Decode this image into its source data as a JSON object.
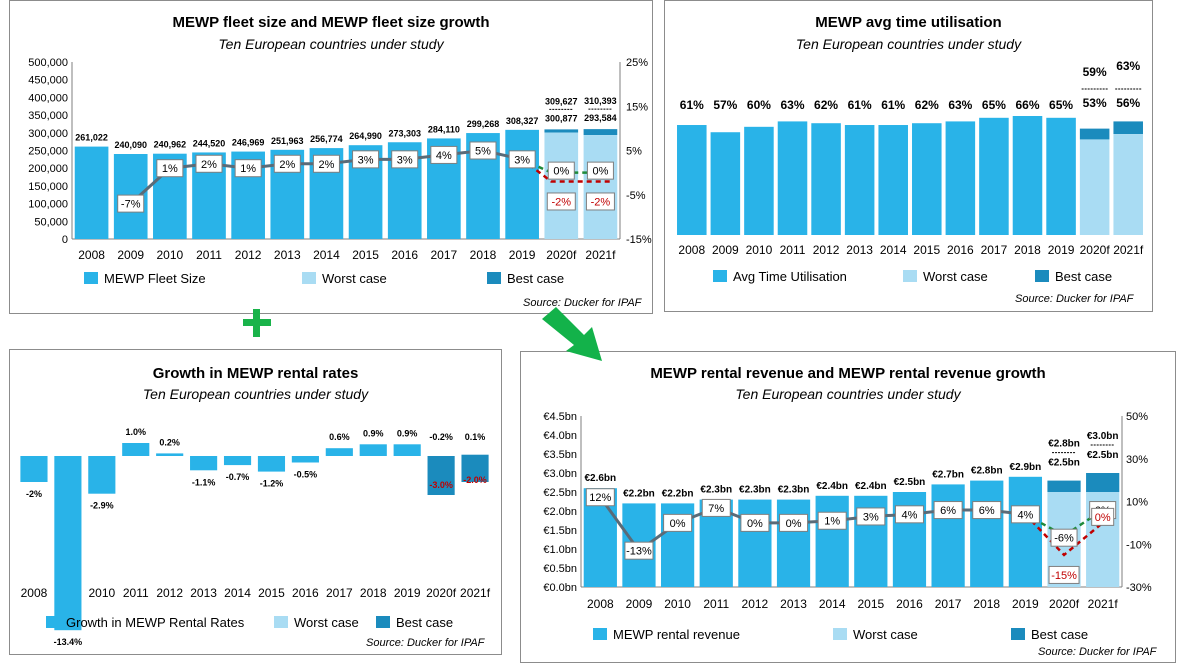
{
  "colors": {
    "main": "#29b3e8",
    "worst": "#a9dcf3",
    "best": "#1b8bbd",
    "line": "#5a6b78",
    "green": "#1f8a3a",
    "red": "#c00000"
  },
  "panels": {
    "fleet": {
      "title": "MEWP fleet size and MEWP fleet size growth",
      "subtitle": "Ten European countries under study",
      "source": "Source: Ducker for IPAF"
    },
    "util": {
      "title": "MEWP avg time utilisation",
      "subtitle": "Ten European countries under study",
      "source": "Source: Ducker for IPAF"
    },
    "rates": {
      "title": "Growth in MEWP rental rates",
      "subtitle": "Ten European countries under study",
      "source": "Source: Ducker for IPAF"
    },
    "revenue": {
      "title": "MEWP rental revenue and MEWP rental revenue growth",
      "subtitle": "Ten European countries under study",
      "source": "Source: Ducker for IPAF"
    }
  },
  "chart_data": [
    {
      "id": "fleet",
      "type": "bar",
      "categories": [
        "2008",
        "2009",
        "2010",
        "2011",
        "2012",
        "2013",
        "2014",
        "2015",
        "2016",
        "2017",
        "2018",
        "2019",
        "2020f",
        "2021f"
      ],
      "series": [
        {
          "name": "MEWP Fleet Size",
          "values": [
            261022,
            240090,
            240962,
            244520,
            246969,
            251963,
            256774,
            264990,
            273303,
            284110,
            299268,
            308327,
            null,
            null
          ]
        },
        {
          "name": "Worst case",
          "values": [
            null,
            null,
            null,
            null,
            null,
            null,
            null,
            null,
            null,
            null,
            null,
            null,
            300877,
            293584
          ]
        },
        {
          "name": "Best case",
          "values": [
            null,
            null,
            null,
            null,
            null,
            null,
            null,
            null,
            null,
            null,
            null,
            null,
            309627,
            310393
          ]
        }
      ],
      "bar_labels": [
        "261,022",
        "240,090",
        "240,962",
        "244,520",
        "246,969",
        "251,963",
        "256,774",
        "264,990",
        "273,303",
        "284,110",
        "299,268",
        "308,327",
        "300,877",
        "293,584"
      ],
      "best_labels": [
        "309,627",
        "310,393"
      ],
      "growth": [
        null,
        -7,
        1,
        2,
        1,
        2,
        2,
        3,
        3,
        4,
        5,
        3,
        null,
        null
      ],
      "growth_labels": [
        "",
        "-7%",
        "1%",
        "2%",
        "1%",
        "2%",
        "2%",
        "3%",
        "3%",
        "4%",
        "5%",
        "3%",
        "",
        ""
      ],
      "growth_best": [
        0,
        0
      ],
      "growth_best_labels": [
        "0%",
        "0%"
      ],
      "growth_worst": [
        -2,
        -2
      ],
      "growth_worst_labels": [
        "-2%",
        "-2%"
      ],
      "ylim": [
        0,
        500000
      ],
      "y_ticks": [
        "0",
        "50,000",
        "100,000",
        "150,000",
        "200,000",
        "250,000",
        "300,000",
        "350,000",
        "400,000",
        "450,000",
        "500,000"
      ],
      "y2lim": [
        -15,
        25
      ],
      "y2_ticks": [
        "-15%",
        "-5%",
        "5%",
        "15%",
        "25%"
      ],
      "legend": [
        "MEWP Fleet Size",
        "Worst case",
        "Best case"
      ]
    },
    {
      "id": "util",
      "type": "bar",
      "categories": [
        "2008",
        "2009",
        "2010",
        "2011",
        "2012",
        "2013",
        "2014",
        "2015",
        "2016",
        "2017",
        "2018",
        "2019",
        "2020f",
        "2021f"
      ],
      "series": [
        {
          "name": "Avg Time Utilisation",
          "values": [
            61,
            57,
            60,
            63,
            62,
            61,
            61,
            62,
            63,
            65,
            66,
            65,
            null,
            null
          ]
        },
        {
          "name": "Worst case",
          "values": [
            null,
            null,
            null,
            null,
            null,
            null,
            null,
            null,
            null,
            null,
            null,
            null,
            53,
            56
          ]
        },
        {
          "name": "Best case",
          "values": [
            null,
            null,
            null,
            null,
            null,
            null,
            null,
            null,
            null,
            null,
            null,
            null,
            59,
            63
          ]
        }
      ],
      "bar_labels": [
        "61%",
        "57%",
        "60%",
        "63%",
        "62%",
        "61%",
        "61%",
        "62%",
        "63%",
        "65%",
        "66%",
        "65%",
        "53%",
        "56%"
      ],
      "best_labels": [
        "59%",
        "63%"
      ],
      "legend": [
        "Avg Time Utilisation",
        "Worst case",
        "Best case"
      ]
    },
    {
      "id": "rates",
      "type": "bar",
      "categories": [
        "2008",
        "2009",
        "2010",
        "2011",
        "2012",
        "2013",
        "2014",
        "2015",
        "2016",
        "2017",
        "2018",
        "2019",
        "2020f",
        "2021f"
      ],
      "series": [
        {
          "name": "Growth in MEWP Rental Rates",
          "values": [
            -2,
            -13.4,
            -2.9,
            1.0,
            0.2,
            -1.1,
            -0.7,
            -1.2,
            -0.5,
            0.6,
            0.9,
            0.9,
            null,
            null
          ]
        },
        {
          "name": "Worst case",
          "values": [
            null,
            null,
            null,
            null,
            null,
            null,
            null,
            null,
            null,
            null,
            null,
            null,
            -3.0,
            -2.0
          ]
        },
        {
          "name": "Best case",
          "values": [
            null,
            null,
            null,
            null,
            null,
            null,
            null,
            null,
            null,
            null,
            null,
            null,
            -0.2,
            0.1
          ]
        }
      ],
      "bar_labels": [
        "-2%",
        "-13.4%",
        "-2.9%",
        "1.0%",
        "0.2%",
        "-1.1%",
        "-0.7%",
        "-1.2%",
        "-0.5%",
        "0.6%",
        "0.9%",
        "0.9%"
      ],
      "best_labels": [
        "-0.2%",
        "0.1%"
      ],
      "worst_labels": [
        "-3.0%",
        "-2.0%"
      ],
      "legend": [
        "Growth in MEWP Rental Rates",
        "Worst case",
        "Best case"
      ]
    },
    {
      "id": "revenue",
      "type": "bar",
      "categories": [
        "2008",
        "2009",
        "2010",
        "2011",
        "2012",
        "2013",
        "2014",
        "2015",
        "2016",
        "2017",
        "2018",
        "2019",
        "2020f",
        "2021f"
      ],
      "series": [
        {
          "name": "MEWP rental revenue",
          "values": [
            2.6,
            2.2,
            2.2,
            2.3,
            2.3,
            2.3,
            2.4,
            2.4,
            2.5,
            2.7,
            2.8,
            2.9,
            null,
            null
          ]
        },
        {
          "name": "Worst case",
          "values": [
            null,
            null,
            null,
            null,
            null,
            null,
            null,
            null,
            null,
            null,
            null,
            null,
            2.5,
            2.5
          ]
        },
        {
          "name": "Best case",
          "values": [
            null,
            null,
            null,
            null,
            null,
            null,
            null,
            null,
            null,
            null,
            null,
            null,
            2.8,
            3.0
          ]
        }
      ],
      "bar_labels": [
        "€2.6bn",
        "€2.2bn",
        "€2.2bn",
        "€2.3bn",
        "€2.3bn",
        "€2.3bn",
        "€2.4bn",
        "€2.4bn",
        "€2.5bn",
        "€2.7bn",
        "€2.8bn",
        "€2.9bn",
        "€2.5bn",
        "€2.5bn"
      ],
      "best_labels": [
        "€2.8bn",
        "€3.0bn"
      ],
      "growth": [
        12,
        -13,
        0,
        7,
        0,
        0,
        1,
        3,
        4,
        6,
        6,
        4,
        null,
        null
      ],
      "growth_labels": [
        "12%",
        "-13%",
        "0%",
        "7%",
        "0%",
        "0%",
        "1%",
        "3%",
        "4%",
        "6%",
        "6%",
        "4%",
        "",
        ""
      ],
      "growth_best": [
        -6,
        6
      ],
      "growth_best_labels": [
        "-6%",
        "6%"
      ],
      "growth_worst": [
        -15,
        0
      ],
      "growth_worst_labels": [
        "-15%",
        "0%"
      ],
      "ylim": [
        0,
        4.5
      ],
      "y_ticks": [
        "€0.0bn",
        "€0.5bn",
        "€1.0bn",
        "€1.5bn",
        "€2.0bn",
        "€2.5bn",
        "€3.0bn",
        "€3.5bn",
        "€4.0bn",
        "€4.5bn"
      ],
      "y2lim": [
        -30,
        50
      ],
      "y2_ticks": [
        "-30%",
        "-10%",
        "10%",
        "30%",
        "50%"
      ],
      "legend": [
        "MEWP rental revenue",
        "Worst case",
        "Best case"
      ]
    }
  ]
}
